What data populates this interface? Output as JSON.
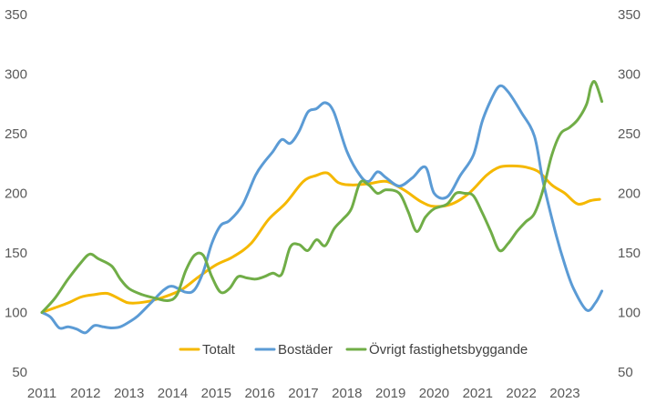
{
  "chart_data": {
    "type": "line",
    "title": "",
    "xlabel": "",
    "ylabel": "",
    "ylim": [
      50,
      350
    ],
    "y_ticks": [
      "50",
      "100",
      "150",
      "200",
      "250",
      "300",
      "350"
    ],
    "xlim": [
      2011,
      2023.9
    ],
    "x_ticks": [
      "2011",
      "2012",
      "2013",
      "2014",
      "2015",
      "2016",
      "2017",
      "2018",
      "2019",
      "2020",
      "2021",
      "2022",
      "2023"
    ],
    "grid": false,
    "secondary_y_axis": true,
    "legend_position": "bottom",
    "series": [
      {
        "name": "Totalt",
        "color": "#F5B800",
        "x": [
          2011.0,
          2011.3,
          2011.6,
          2011.9,
          2012.2,
          2012.5,
          2012.8,
          2013.0,
          2013.4,
          2013.8,
          2014.2,
          2014.6,
          2015.0,
          2015.4,
          2015.8,
          2016.2,
          2016.6,
          2017.0,
          2017.3,
          2017.55,
          2017.8,
          2018.1,
          2018.5,
          2018.9,
          2019.3,
          2019.7,
          2020.0,
          2020.4,
          2020.8,
          2021.2,
          2021.5,
          2021.8,
          2022.1,
          2022.4,
          2022.7,
          2023.0,
          2023.3,
          2023.6,
          2023.8
        ],
        "y": [
          100,
          104,
          108,
          113,
          115,
          116,
          111,
          108,
          109,
          113,
          119,
          130,
          140,
          147,
          158,
          178,
          192,
          210,
          215,
          217,
          209,
          207,
          208,
          210,
          203,
          193,
          189,
          191,
          200,
          215,
          222,
          223,
          222,
          218,
          207,
          200,
          191,
          194,
          195
        ]
      },
      {
        "name": "Bostäder",
        "color": "#5B9BD5",
        "x": [
          2011.0,
          2011.2,
          2011.4,
          2011.6,
          2011.8,
          2012.0,
          2012.2,
          2012.4,
          2012.6,
          2012.8,
          2013.0,
          2013.2,
          2013.5,
          2013.8,
          2014.0,
          2014.3,
          2014.5,
          2014.7,
          2014.9,
          2015.1,
          2015.3,
          2015.6,
          2015.9,
          2016.1,
          2016.3,
          2016.5,
          2016.7,
          2016.9,
          2017.1,
          2017.3,
          2017.5,
          2017.7,
          2018.0,
          2018.3,
          2018.5,
          2018.7,
          2018.9,
          2019.2,
          2019.5,
          2019.8,
          2020.0,
          2020.3,
          2020.6,
          2020.9,
          2021.1,
          2021.3,
          2021.5,
          2021.7,
          2022.0,
          2022.3,
          2022.5,
          2022.8,
          2023.0,
          2023.2,
          2023.5,
          2023.7,
          2023.85
        ],
        "y": [
          100,
          96,
          87,
          88,
          86,
          83,
          89,
          88,
          87,
          88,
          92,
          97,
          108,
          119,
          122,
          117,
          119,
          134,
          158,
          173,
          177,
          190,
          215,
          226,
          235,
          245,
          242,
          252,
          268,
          271,
          276,
          268,
          235,
          215,
          210,
          218,
          213,
          206,
          213,
          222,
          200,
          197,
          215,
          232,
          260,
          278,
          290,
          285,
          268,
          248,
          210,
          165,
          140,
          120,
          102,
          108,
          118
        ]
      },
      {
        "name": "Övrigt fastighetsbyggande",
        "color": "#70AD47",
        "x": [
          2011.0,
          2011.3,
          2011.6,
          2011.9,
          2012.1,
          2012.3,
          2012.6,
          2012.8,
          2013.0,
          2013.3,
          2013.6,
          2013.9,
          2014.1,
          2014.3,
          2014.5,
          2014.7,
          2014.9,
          2015.1,
          2015.3,
          2015.5,
          2015.7,
          2015.9,
          2016.1,
          2016.3,
          2016.5,
          2016.7,
          2016.9,
          2017.1,
          2017.3,
          2017.5,
          2017.7,
          2017.9,
          2018.1,
          2018.3,
          2018.5,
          2018.7,
          2018.9,
          2019.2,
          2019.4,
          2019.6,
          2019.8,
          2020.0,
          2020.3,
          2020.5,
          2020.7,
          2020.9,
          2021.1,
          2021.3,
          2021.5,
          2021.7,
          2021.9,
          2022.1,
          2022.3,
          2022.5,
          2022.7,
          2022.9,
          2023.1,
          2023.3,
          2023.5,
          2023.6,
          2023.7,
          2023.85
        ],
        "y": [
          100,
          112,
          128,
          142,
          149,
          145,
          139,
          128,
          120,
          115,
          112,
          110,
          115,
          135,
          148,
          148,
          130,
          117,
          120,
          130,
          129,
          128,
          130,
          133,
          132,
          155,
          157,
          152,
          161,
          156,
          170,
          178,
          187,
          209,
          207,
          200,
          203,
          200,
          185,
          168,
          180,
          187,
          191,
          200,
          200,
          198,
          184,
          168,
          152,
          158,
          168,
          176,
          183,
          203,
          232,
          250,
          255,
          262,
          275,
          290,
          293,
          277
        ]
      }
    ]
  }
}
